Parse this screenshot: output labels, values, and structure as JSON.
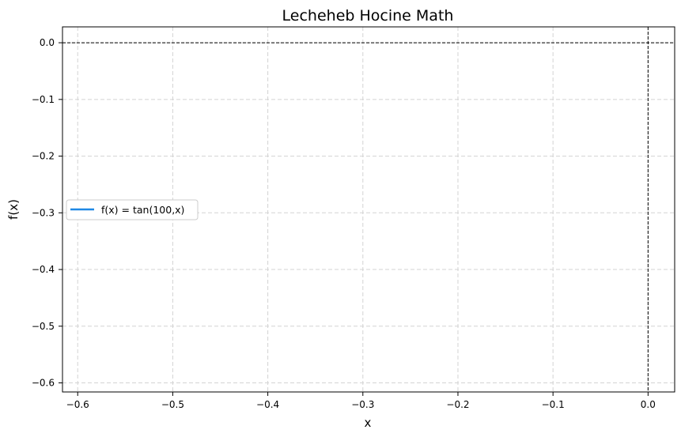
{
  "chart_data": {
    "type": "line",
    "title": "Lecheheb Hocine Math",
    "xlabel": "x",
    "ylabel": "f(x)",
    "xlim": [
      -0.616,
      0.028
    ],
    "ylim": [
      -0.616,
      0.028
    ],
    "x_ticks": [
      -0.6,
      -0.5,
      -0.4,
      -0.3,
      -0.2,
      -0.1,
      0.0
    ],
    "x_tick_labels": [
      "−0.6",
      "−0.5",
      "−0.4",
      "−0.3",
      "−0.2",
      "−0.1",
      "0.0"
    ],
    "y_ticks": [
      0.0,
      -0.1,
      -0.2,
      -0.3,
      -0.4,
      -0.5,
      -0.6
    ],
    "y_tick_labels": [
      "0.0",
      "−0.1",
      "−0.2",
      "−0.3",
      "−0.4",
      "−0.5",
      "−0.6"
    ],
    "grid": true,
    "grid_style": "dashed",
    "reference_lines": {
      "horizontal_y": 0.0,
      "vertical_x": 0.0,
      "color": "#000000",
      "style": "dashed"
    },
    "series": [
      {
        "name": "f(x) = tan(100,x)",
        "color": "#1f88e5",
        "x": [],
        "y": []
      }
    ],
    "legend": {
      "position": "center-left",
      "entries": [
        "f(x) = tan(100,x)"
      ]
    }
  }
}
